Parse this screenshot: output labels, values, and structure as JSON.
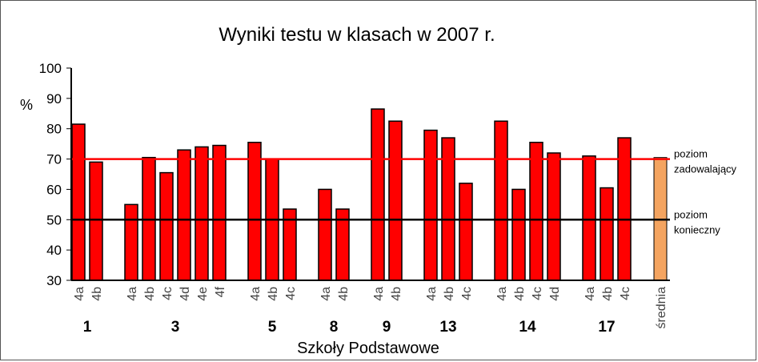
{
  "chart_data": {
    "type": "bar",
    "title": "Wyniki testu w klasach w 2007 r.",
    "xlabel": "Szkoły Podstawowe",
    "ylabel": "%",
    "ylim": [
      30,
      100
    ],
    "yticks": [
      30,
      40,
      50,
      60,
      70,
      80,
      90,
      100
    ],
    "grid": false,
    "groups": [
      {
        "name": "1",
        "classes": [
          "4a",
          "4b"
        ],
        "values": [
          81.5,
          69
        ]
      },
      {
        "name": "3",
        "classes": [
          "4a",
          "4b",
          "4c",
          "4d",
          "4e",
          "4f"
        ],
        "values": [
          55,
          70.5,
          65.5,
          73,
          74,
          74.5
        ]
      },
      {
        "name": "5",
        "classes": [
          "4a",
          "4b",
          "4c"
        ],
        "values": [
          75.5,
          70,
          53.5
        ]
      },
      {
        "name": "8",
        "classes": [
          "4a",
          "4b"
        ],
        "values": [
          60,
          53.5
        ]
      },
      {
        "name": "9",
        "classes": [
          "4a",
          "4b"
        ],
        "values": [
          86.5,
          82.5
        ]
      },
      {
        "name": "13",
        "classes": [
          "4a",
          "4b",
          "4c"
        ],
        "values": [
          79.5,
          77,
          62
        ]
      },
      {
        "name": "14",
        "classes": [
          "4a",
          "4b",
          "4c",
          "4d"
        ],
        "values": [
          82.5,
          60,
          75.5,
          72
        ]
      },
      {
        "name": "17",
        "classes": [
          "4a",
          "4b",
          "4c"
        ],
        "values": [
          71,
          60.5,
          77
        ]
      }
    ],
    "average": {
      "label": "średnia",
      "value": 70.5,
      "color": "#F4A460"
    },
    "bar_color": "#FF0000",
    "reference_lines": [
      {
        "value": 70,
        "label_lines": [
          "poziom",
          "zadowalający"
        ],
        "color": "#FF0000"
      },
      {
        "value": 50,
        "label_lines": [
          "poziom",
          "konieczny"
        ],
        "color": "#000000"
      }
    ]
  }
}
